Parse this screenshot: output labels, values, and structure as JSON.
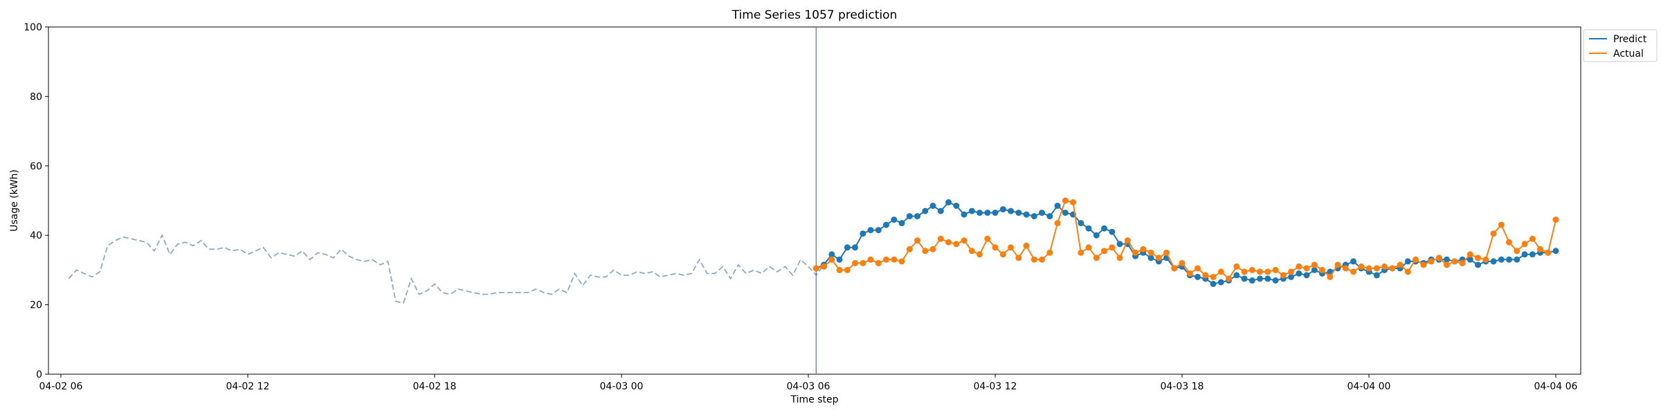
{
  "chart_data": {
    "type": "line",
    "title": "Time Series 1057 prediction",
    "xlabel": "Time step",
    "ylabel": "Usage (kWh)",
    "ylim": [
      0,
      100
    ],
    "yticks": [
      0,
      20,
      40,
      60,
      80,
      100
    ],
    "xlim_hours": [
      -0.4,
      48.8
    ],
    "xticks": [
      {
        "label": "04-02 06",
        "hour": 0
      },
      {
        "label": "04-02 12",
        "hour": 6
      },
      {
        "label": "04-02 18",
        "hour": 12
      },
      {
        "label": "04-03 00",
        "hour": 18
      },
      {
        "label": "04-03 06",
        "hour": 24
      },
      {
        "label": "04-03 12",
        "hour": 30
      },
      {
        "label": "04-03 18",
        "hour": 36
      },
      {
        "label": "04-04 00",
        "hour": 42
      },
      {
        "label": "04-04 06",
        "hour": 48
      }
    ],
    "step_hours": 0.25,
    "history_start_hour": 0.25,
    "forecast_start_hour": 24.25,
    "history_values": [
      27.5,
      30,
      29,
      28,
      29.5,
      37,
      38.5,
      39.5,
      39,
      38.5,
      38,
      35.5,
      40,
      34.5,
      37.5,
      38,
      37,
      38.5,
      36,
      36,
      36.5,
      35.5,
      36,
      34.5,
      35.5,
      36.5,
      33.5,
      35,
      34.5,
      34,
      35.5,
      33,
      35,
      34.5,
      33.5,
      36,
      34,
      33,
      32.5,
      33,
      31.5,
      32.5,
      21,
      20.5,
      27.5,
      23,
      24,
      26,
      23.5,
      23,
      24.5,
      24,
      23.5,
      23,
      23,
      23.5,
      23.5,
      23.5,
      23.5,
      23.5,
      24.5,
      23.5,
      23,
      24.5,
      23.5,
      29,
      25.5,
      28.5,
      28,
      28,
      30,
      28.5,
      28.5,
      29.5,
      29,
      29.5,
      28,
      28.5,
      29,
      28.5,
      29,
      33,
      29,
      29,
      31,
      27.5,
      31.5,
      29,
      30,
      29,
      31,
      29.5,
      31,
      28.5,
      33,
      31,
      28.5,
      31.5,
      32.5
    ],
    "series": [
      {
        "name": "Predict",
        "color": "#1f77b4",
        "values": [
          30.5,
          31.5,
          34.5,
          33,
          36.5,
          36.5,
          40.5,
          41.5,
          41.5,
          43,
          44.5,
          43.5,
          45.5,
          45.5,
          47,
          48.5,
          47,
          49.5,
          48.5,
          46,
          47,
          46.5,
          46.5,
          46.5,
          47.5,
          47,
          46.5,
          46,
          45.5,
          46.5,
          45.5,
          48.5,
          46.5,
          46,
          43.5,
          42,
          40,
          42,
          41,
          37.5,
          37.5,
          34,
          35,
          33.5,
          32.5,
          33.5,
          30.5,
          31,
          28.5,
          28,
          27.5,
          26,
          26.5,
          27,
          28.5,
          27.5,
          27,
          27.5,
          27.5,
          27,
          27.5,
          28,
          29,
          28.5,
          30,
          29,
          29.5,
          30.5,
          31.5,
          32.5,
          30.5,
          29.5,
          28.5,
          30,
          30.5,
          30.5,
          32.5,
          32.5,
          32,
          33,
          33,
          33,
          32.5,
          33,
          33,
          31.5,
          32.5,
          32.5,
          33,
          33,
          33,
          34.5,
          34.5,
          35,
          35,
          35.5
        ]
      },
      {
        "name": "Actual",
        "color": "#ff7f0e",
        "values": [
          30.5,
          31,
          33,
          30,
          30,
          32,
          32,
          33,
          32,
          33,
          33,
          32.5,
          36,
          38.5,
          35.5,
          36,
          39,
          38,
          37.5,
          38.5,
          35.5,
          34.5,
          39,
          36.5,
          34.5,
          36.5,
          33.5,
          37,
          33,
          33,
          35,
          43.5,
          50,
          49.5,
          35,
          36.5,
          33.5,
          35.5,
          36.5,
          33.5,
          38.5,
          35,
          36,
          35,
          33.5,
          35,
          30.5,
          32,
          29,
          30.5,
          28.5,
          28,
          29.5,
          27.5,
          31,
          29.5,
          30,
          29.5,
          29.5,
          30,
          28.5,
          29.5,
          31,
          30.5,
          31.5,
          30,
          28,
          31.5,
          30.5,
          29.5,
          31,
          30.5,
          30.5,
          31,
          30.5,
          31.5,
          29.5,
          33,
          31.5,
          32.5,
          33.5,
          31.5,
          32.5,
          32,
          34.5,
          33.5,
          33,
          40.5,
          43,
          38,
          35.5,
          37.5,
          39,
          36,
          35,
          44.5
        ]
      }
    ],
    "legend_position": "upper-right-outside",
    "grid": false,
    "forecast_marker_color": "#4c72b0",
    "history_color": "#8fa9c4"
  }
}
